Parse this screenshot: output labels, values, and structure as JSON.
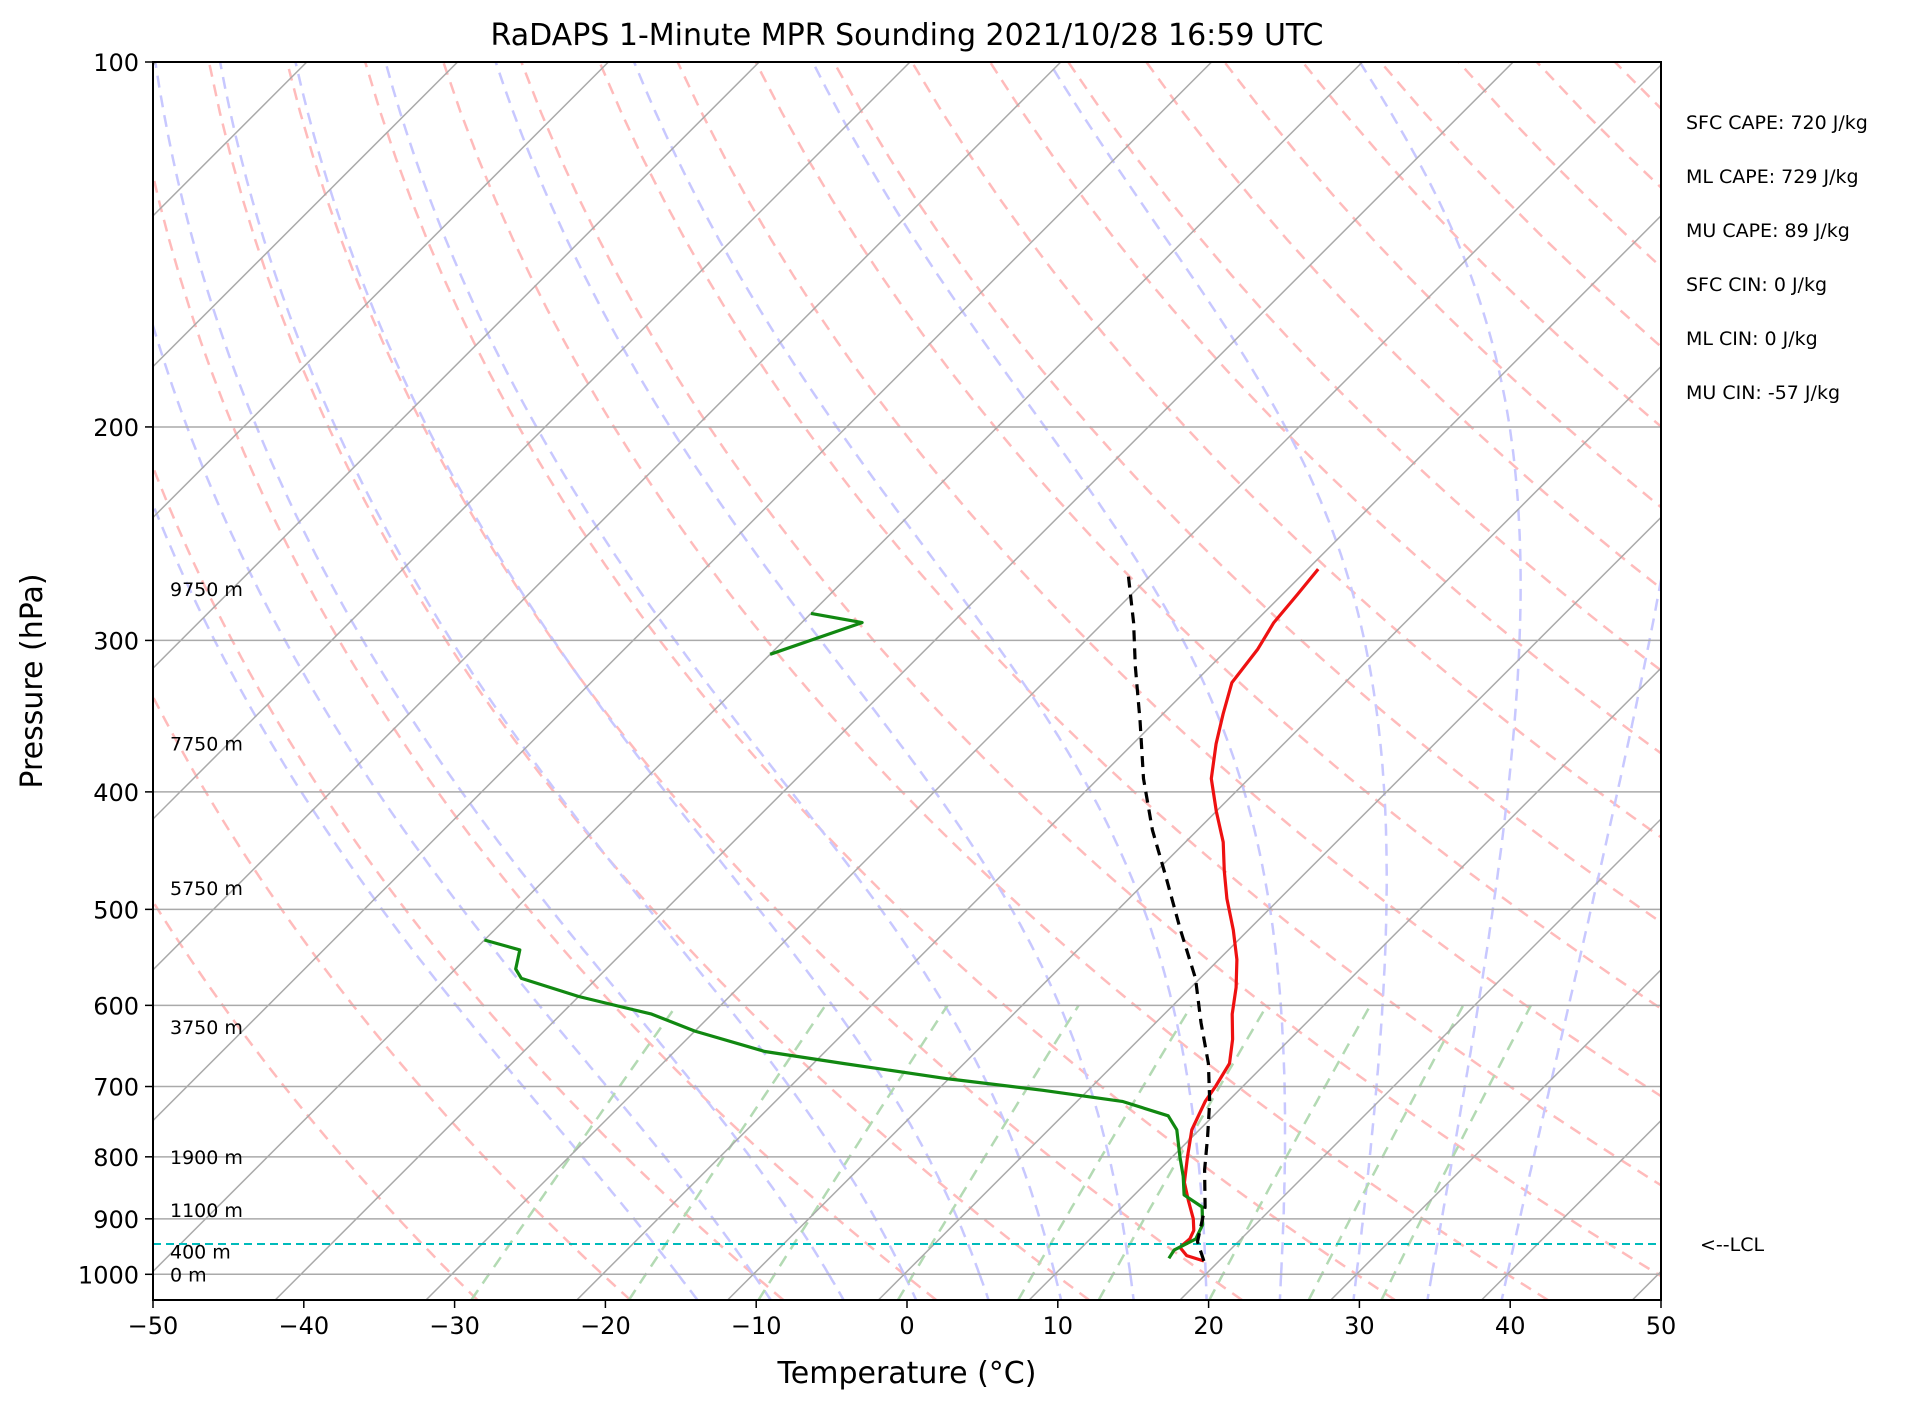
{
  "chart_data": {
    "type": "line",
    "title": "RaDAPS 1-Minute MPR Sounding 2021/10/28 16:59 UTC",
    "xlabel": "Temperature (°C)",
    "ylabel": "Pressure (hPa)",
    "xlim": [
      -50,
      50
    ],
    "ylim": [
      1050,
      100
    ],
    "y_scale": "log",
    "skew": true,
    "x_ticks": [
      -50,
      -40,
      -30,
      -20,
      -10,
      0,
      10,
      20,
      30,
      40,
      50
    ],
    "x_tick_labels": [
      "−50",
      "−40",
      "−30",
      "−20",
      "−10",
      "0",
      "10",
      "20",
      "30",
      "40",
      "50"
    ],
    "y_ticks": [
      100,
      200,
      300,
      400,
      500,
      600,
      700,
      800,
      900,
      1000
    ],
    "y_tick_labels": [
      "100",
      "200",
      "300",
      "400",
      "500",
      "600",
      "700",
      "800",
      "900",
      "1000"
    ],
    "series": [
      {
        "name": "",
        "role": "temperature",
        "color": "#ee1111",
        "points": [
          [
            19,
            975
          ],
          [
            17.5,
            965
          ],
          [
            16.5,
            950
          ],
          [
            16.6,
            935
          ],
          [
            16.3,
            920
          ],
          [
            15.5,
            900
          ],
          [
            14,
            870
          ],
          [
            12.5,
            840
          ],
          [
            11,
            800
          ],
          [
            9.5,
            760
          ],
          [
            8.5,
            720
          ],
          [
            8.2,
            700
          ],
          [
            7.6,
            670
          ],
          [
            6.2,
            640
          ],
          [
            4.5,
            610
          ],
          [
            3,
            580
          ],
          [
            1.2,
            550
          ],
          [
            -1,
            520
          ],
          [
            -3.5,
            490
          ],
          [
            -5.5,
            465
          ],
          [
            -7.5,
            440
          ],
          [
            -10,
            415
          ],
          [
            -12.5,
            390
          ],
          [
            -14.5,
            365
          ],
          [
            -16,
            345
          ],
          [
            -17.5,
            325
          ],
          [
            -18,
            305
          ],
          [
            -18.7,
            290
          ],
          [
            -19,
            275
          ],
          [
            -19.3,
            262
          ]
        ]
      },
      {
        "name": "",
        "role": "dewpoint",
        "color": "#118811",
        "points": [
          [
            16.5,
            970
          ],
          [
            16.3,
            955
          ],
          [
            17,
            935
          ],
          [
            16.5,
            910
          ],
          [
            15.3,
            880
          ],
          [
            13.3,
            860
          ],
          [
            12,
            830
          ],
          [
            10.5,
            800
          ],
          [
            8.5,
            760
          ],
          [
            7,
            740
          ],
          [
            3,
            720
          ],
          [
            -3,
            705
          ],
          [
            -10,
            690
          ],
          [
            -18,
            670
          ],
          [
            -24,
            655
          ],
          [
            -30,
            630
          ],
          [
            -34,
            610
          ],
          [
            -40,
            590
          ],
          [
            -45,
            570
          ],
          [
            -46,
            560
          ],
          [
            -47,
            540
          ],
          [
            -50,
            530
          ]
        ]
      },
      {
        "name": "",
        "role": "dewpoint-upper",
        "color": "#118811",
        "points": [
          [
            -50,
            285
          ],
          [
            -46,
            290
          ],
          [
            -50,
            308
          ]
        ]
      },
      {
        "name": "",
        "role": "parcel",
        "color": "#000000",
        "points": [
          [
            19,
            975
          ],
          [
            17.3,
            940
          ],
          [
            15.5,
            880
          ],
          [
            13,
            820
          ],
          [
            11,
            770
          ],
          [
            8.8,
            720
          ],
          [
            6.2,
            670
          ],
          [
            3,
            620
          ],
          [
            -0.3,
            570
          ],
          [
            -4.5,
            520
          ],
          [
            -9,
            470
          ],
          [
            -13,
            430
          ],
          [
            -17,
            390
          ],
          [
            -21,
            350
          ],
          [
            -25,
            315
          ],
          [
            -28,
            290
          ],
          [
            -31.5,
            265
          ]
        ]
      }
    ],
    "lcl_pressure": 944,
    "lcl_label": "<--LCL",
    "lcl_color": "#00bbbb",
    "height_labels": [
      {
        "text": "0 m",
        "p": 1000
      },
      {
        "text": "400 m",
        "p": 958
      },
      {
        "text": "1100 m",
        "p": 885
      },
      {
        "text": "1900 m",
        "p": 800
      },
      {
        "text": "3750 m",
        "p": 625
      },
      {
        "text": "5750 m",
        "p": 480
      },
      {
        "text": "7750 m",
        "p": 365
      },
      {
        "text": "9750 m",
        "p": 272
      }
    ],
    "stats": [
      "SFC CAPE: 720 J/kg",
      "ML CAPE: 729 J/kg",
      "MU CAPE: 89 J/kg",
      "SFC CIN: 0 J/kg",
      "ML CIN: 0 J/kg",
      "MU CIN: -57 J/kg"
    ],
    "colors": {
      "isotherm": "#aaaaaa",
      "isobar": "#aaaaaa",
      "dry_adiabat": "#ffbbbb",
      "moist_adiabat": "#c8c8ff",
      "mixing_ratio": "#b3dab3"
    }
  }
}
